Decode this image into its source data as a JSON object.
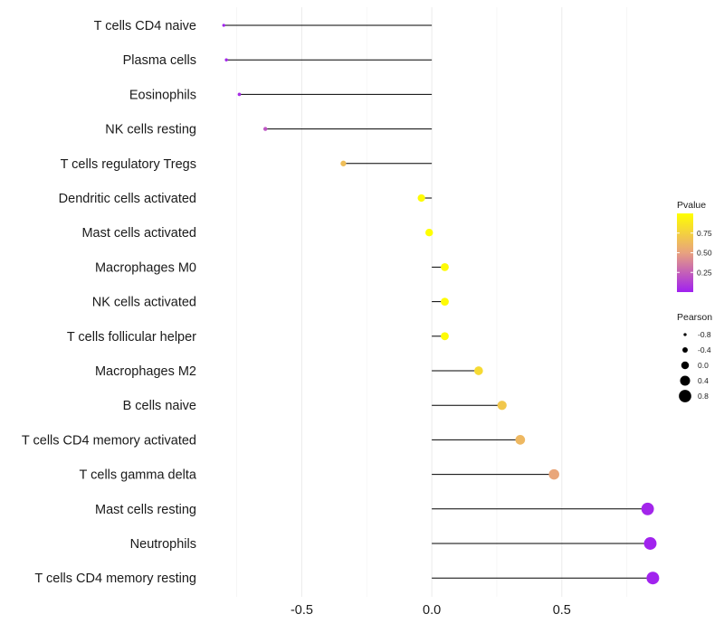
{
  "chart_data": {
    "type": "lollipop",
    "title": "",
    "xlabel": "",
    "ylabel": "",
    "xlim": [
      -0.86,
      0.88
    ],
    "x_ticks": [
      -0.5,
      0.0,
      0.5
    ],
    "x_tick_labels": [
      "-0.5",
      "0.0",
      "0.5"
    ],
    "grid": true,
    "baseline": 0,
    "categories": [
      "T cells CD4 naive",
      "Plasma cells",
      "Eosinophils",
      "NK cells resting",
      "T cells regulatory  Tregs ",
      "Dendritic cells activated",
      "Mast cells activated",
      "Macrophages M0",
      "NK cells activated",
      "T cells follicular helper",
      "Macrophages M2",
      "B cells naive",
      "T cells CD4 memory activated",
      "T cells gamma delta",
      "Mast cells resting",
      "Neutrophils",
      "T cells CD4 memory resting"
    ],
    "pearson": [
      -0.8,
      -0.79,
      -0.74,
      -0.64,
      -0.34,
      -0.04,
      -0.01,
      0.05,
      0.05,
      0.05,
      0.18,
      0.27,
      0.34,
      0.47,
      0.83,
      0.84,
      0.85
    ],
    "pvalue": [
      0.01,
      0.02,
      0.05,
      0.2,
      0.65,
      0.98,
      1.0,
      0.98,
      0.98,
      0.98,
      0.8,
      0.7,
      0.62,
      0.52,
      0.02,
      0.01,
      0.01
    ],
    "legends": {
      "color": {
        "title": "Pvalue",
        "ticks": [
          0.25,
          0.5,
          0.75
        ],
        "tick_labels": [
          "0.25",
          "0.50",
          "0.75"
        ],
        "range": [
          0,
          1
        ],
        "low_color": "#a020f0",
        "mid_color": "#e8a27f",
        "high_color": "#ffff00"
      },
      "size": {
        "title": "Pearson",
        "values": [
          -0.8,
          -0.4,
          0.0,
          0.4,
          0.8
        ],
        "labels": [
          "-0.8",
          "-0.4",
          "0.0",
          "0.4",
          "0.8"
        ]
      }
    }
  }
}
